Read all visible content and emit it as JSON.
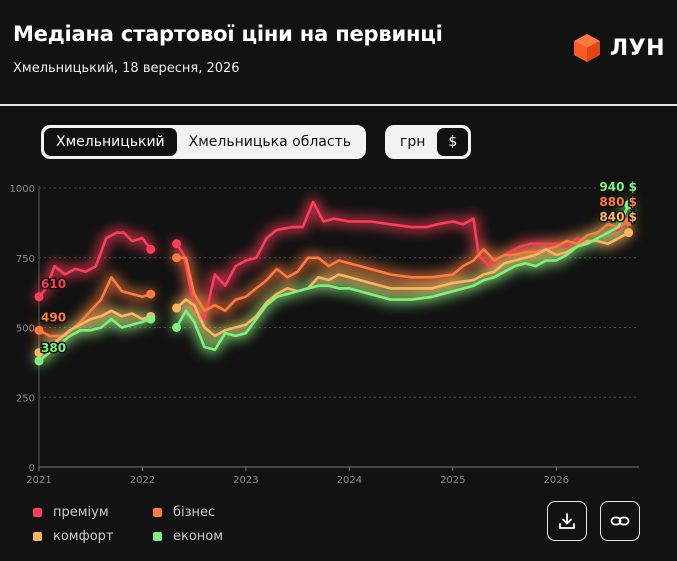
{
  "header": {
    "title": "Медіана стартової ціни на первинці",
    "subtitle": "Хмельницький, 18 вересня, 2026",
    "brand": "ЛУН",
    "brand_color": "#ff5a1f"
  },
  "region_toggle": {
    "options": [
      "Хмельницький",
      "Хмельницька область"
    ],
    "selected": "Хмельницький"
  },
  "currency_toggle": {
    "options": [
      "грн",
      "$"
    ],
    "selected": "$"
  },
  "legend": [
    {
      "name": "преміум",
      "color": "#ff3d5a"
    },
    {
      "name": "бізнес",
      "color": "#ff7a3d"
    },
    {
      "name": "комфорт",
      "color": "#ffb560"
    },
    {
      "name": "економ",
      "color": "#7ef27e"
    }
  ],
  "actions": {
    "download_icon": "download-icon",
    "link_icon": "link-icon"
  },
  "chart_data": {
    "type": "line",
    "y_ticks": [
      0,
      250,
      500,
      750,
      1000
    ],
    "ylim": [
      0,
      1000
    ],
    "xlim": [
      2021.0,
      2026.8
    ],
    "x_ticks": [
      2021,
      2022,
      2023,
      2024,
      2025,
      2026
    ],
    "x_tick_labels": [
      "2021",
      "2022",
      "2023",
      "2024",
      "2025",
      "2026"
    ],
    "grid": true,
    "start_labels": {
      "преміум": "610",
      "бізнес": "490",
      "економ": "380"
    },
    "end_labels": {
      "економ": "940 $",
      "бізнес": "880 $",
      "комфорт": "840 $"
    },
    "series": [
      {
        "name": "преміум",
        "color": "#ff3d5a",
        "segments": [
          [
            [
              2021.0,
              610
            ],
            [
              2021.07,
              640
            ],
            [
              2021.15,
              720
            ],
            [
              2021.25,
              690
            ],
            [
              2021.35,
              710
            ],
            [
              2021.45,
              700
            ],
            [
              2021.55,
              720
            ],
            [
              2021.65,
              820
            ],
            [
              2021.75,
              840
            ],
            [
              2021.82,
              840
            ],
            [
              2021.9,
              810
            ],
            [
              2022.0,
              820
            ],
            [
              2022.08,
              780
            ]
          ],
          [
            [
              2022.33,
              800
            ],
            [
              2022.4,
              760
            ],
            [
              2022.5,
              570
            ],
            [
              2022.6,
              530
            ],
            [
              2022.7,
              690
            ],
            [
              2022.8,
              650
            ],
            [
              2022.9,
              720
            ],
            [
              2023.0,
              740
            ],
            [
              2023.1,
              750
            ],
            [
              2023.2,
              820
            ],
            [
              2023.3,
              850
            ],
            [
              2023.45,
              860
            ],
            [
              2023.55,
              860
            ],
            [
              2023.65,
              950
            ],
            [
              2023.75,
              880
            ],
            [
              2023.85,
              890
            ],
            [
              2024.0,
              880
            ],
            [
              2024.2,
              880
            ],
            [
              2024.4,
              870
            ],
            [
              2024.6,
              860
            ],
            [
              2024.75,
              860
            ],
            [
              2024.85,
              870
            ],
            [
              2025.0,
              880
            ],
            [
              2025.1,
              870
            ],
            [
              2025.2,
              890
            ],
            [
              2025.25,
              760
            ],
            [
              2025.35,
              720
            ],
            [
              2025.45,
              750
            ],
            [
              2025.55,
              770
            ],
            [
              2025.65,
              790
            ],
            [
              2025.75,
              800
            ],
            [
              2025.85,
              800
            ],
            [
              2026.0,
              800
            ],
            [
              2026.1,
              790
            ],
            [
              2026.2,
              820
            ],
            [
              2026.3,
              800
            ],
            [
              2026.4,
              820
            ],
            [
              2026.5,
              840
            ],
            [
              2026.6,
              850
            ],
            [
              2026.7,
              880
            ]
          ]
        ]
      },
      {
        "name": "бізнес",
        "color": "#ff7a3d",
        "segments": [
          [
            [
              2021.0,
              490
            ],
            [
              2021.1,
              470
            ],
            [
              2021.25,
              470
            ],
            [
              2021.4,
              520
            ],
            [
              2021.5,
              560
            ],
            [
              2021.6,
              600
            ],
            [
              2021.7,
              680
            ],
            [
              2021.8,
              630
            ],
            [
              2021.9,
              620
            ],
            [
              2022.0,
              610
            ],
            [
              2022.08,
              620
            ]
          ],
          [
            [
              2022.33,
              750
            ],
            [
              2022.42,
              750
            ],
            [
              2022.5,
              620
            ],
            [
              2022.6,
              560
            ],
            [
              2022.7,
              580
            ],
            [
              2022.8,
              560
            ],
            [
              2022.9,
              600
            ],
            [
              2023.0,
              610
            ],
            [
              2023.1,
              640
            ],
            [
              2023.2,
              670
            ],
            [
              2023.3,
              710
            ],
            [
              2023.4,
              680
            ],
            [
              2023.5,
              700
            ],
            [
              2023.6,
              750
            ],
            [
              2023.7,
              750
            ],
            [
              2023.8,
              720
            ],
            [
              2023.9,
              740
            ],
            [
              2024.0,
              730
            ],
            [
              2024.2,
              710
            ],
            [
              2024.4,
              690
            ],
            [
              2024.6,
              680
            ],
            [
              2024.8,
              680
            ],
            [
              2025.0,
              690
            ],
            [
              2025.1,
              720
            ],
            [
              2025.2,
              740
            ],
            [
              2025.3,
              780
            ],
            [
              2025.4,
              740
            ],
            [
              2025.5,
              760
            ],
            [
              2025.6,
              760
            ],
            [
              2025.7,
              770
            ],
            [
              2025.8,
              770
            ],
            [
              2025.9,
              780
            ],
            [
              2026.0,
              790
            ],
            [
              2026.1,
              810
            ],
            [
              2026.2,
              800
            ],
            [
              2026.3,
              830
            ],
            [
              2026.4,
              840
            ],
            [
              2026.5,
              870
            ],
            [
              2026.6,
              860
            ],
            [
              2026.7,
              880
            ]
          ]
        ]
      },
      {
        "name": "комфорт",
        "color": "#ffb560",
        "segments": [
          [
            [
              2021.0,
              410
            ],
            [
              2021.1,
              430
            ],
            [
              2021.2,
              460
            ],
            [
              2021.3,
              490
            ],
            [
              2021.4,
              510
            ],
            [
              2021.5,
              530
            ],
            [
              2021.6,
              540
            ],
            [
              2021.7,
              560
            ],
            [
              2021.8,
              540
            ],
            [
              2021.9,
              550
            ],
            [
              2022.0,
              530
            ],
            [
              2022.08,
              540
            ]
          ],
          [
            [
              2022.33,
              570
            ],
            [
              2022.42,
              600
            ],
            [
              2022.5,
              580
            ],
            [
              2022.6,
              500
            ],
            [
              2022.7,
              470
            ],
            [
              2022.8,
              490
            ],
            [
              2022.9,
              500
            ],
            [
              2023.0,
              510
            ],
            [
              2023.1,
              540
            ],
            [
              2023.2,
              590
            ],
            [
              2023.3,
              620
            ],
            [
              2023.4,
              640
            ],
            [
              2023.5,
              630
            ],
            [
              2023.6,
              640
            ],
            [
              2023.7,
              680
            ],
            [
              2023.8,
              670
            ],
            [
              2023.9,
              690
            ],
            [
              2024.0,
              680
            ],
            [
              2024.2,
              660
            ],
            [
              2024.4,
              640
            ],
            [
              2024.6,
              640
            ],
            [
              2024.8,
              640
            ],
            [
              2025.0,
              660
            ],
            [
              2025.2,
              670
            ],
            [
              2025.3,
              690
            ],
            [
              2025.4,
              700
            ],
            [
              2025.5,
              730
            ],
            [
              2025.6,
              740
            ],
            [
              2025.7,
              750
            ],
            [
              2025.8,
              760
            ],
            [
              2025.9,
              780
            ],
            [
              2026.0,
              760
            ],
            [
              2026.1,
              770
            ],
            [
              2026.2,
              790
            ],
            [
              2026.3,
              810
            ],
            [
              2026.4,
              810
            ],
            [
              2026.5,
              800
            ],
            [
              2026.6,
              820
            ],
            [
              2026.7,
              840
            ]
          ]
        ]
      },
      {
        "name": "економ",
        "color": "#7ef27e",
        "segments": [
          [
            [
              2021.0,
              380
            ],
            [
              2021.1,
              410
            ],
            [
              2021.2,
              440
            ],
            [
              2021.3,
              470
            ],
            [
              2021.4,
              490
            ],
            [
              2021.5,
              490
            ],
            [
              2021.6,
              500
            ],
            [
              2021.7,
              530
            ],
            [
              2021.8,
              500
            ],
            [
              2021.9,
              510
            ],
            [
              2022.0,
              520
            ],
            [
              2022.08,
              530
            ]
          ],
          [
            [
              2022.33,
              500
            ],
            [
              2022.42,
              560
            ],
            [
              2022.5,
              520
            ],
            [
              2022.6,
              430
            ],
            [
              2022.7,
              420
            ],
            [
              2022.8,
              480
            ],
            [
              2022.9,
              470
            ],
            [
              2023.0,
              480
            ],
            [
              2023.1,
              530
            ],
            [
              2023.2,
              580
            ],
            [
              2023.3,
              610
            ],
            [
              2023.4,
              620
            ],
            [
              2023.5,
              630
            ],
            [
              2023.6,
              640
            ],
            [
              2023.7,
              650
            ],
            [
              2023.8,
              650
            ],
            [
              2023.9,
              640
            ],
            [
              2024.0,
              640
            ],
            [
              2024.2,
              620
            ],
            [
              2024.4,
              600
            ],
            [
              2024.6,
              600
            ],
            [
              2024.8,
              610
            ],
            [
              2025.0,
              630
            ],
            [
              2025.2,
              650
            ],
            [
              2025.3,
              670
            ],
            [
              2025.4,
              680
            ],
            [
              2025.5,
              700
            ],
            [
              2025.6,
              720
            ],
            [
              2025.7,
              730
            ],
            [
              2025.8,
              720
            ],
            [
              2025.9,
              740
            ],
            [
              2026.0,
              740
            ],
            [
              2026.1,
              760
            ],
            [
              2026.2,
              790
            ],
            [
              2026.3,
              800
            ],
            [
              2026.4,
              820
            ],
            [
              2026.5,
              840
            ],
            [
              2026.6,
              860
            ],
            [
              2026.7,
              940
            ]
          ]
        ]
      }
    ]
  }
}
